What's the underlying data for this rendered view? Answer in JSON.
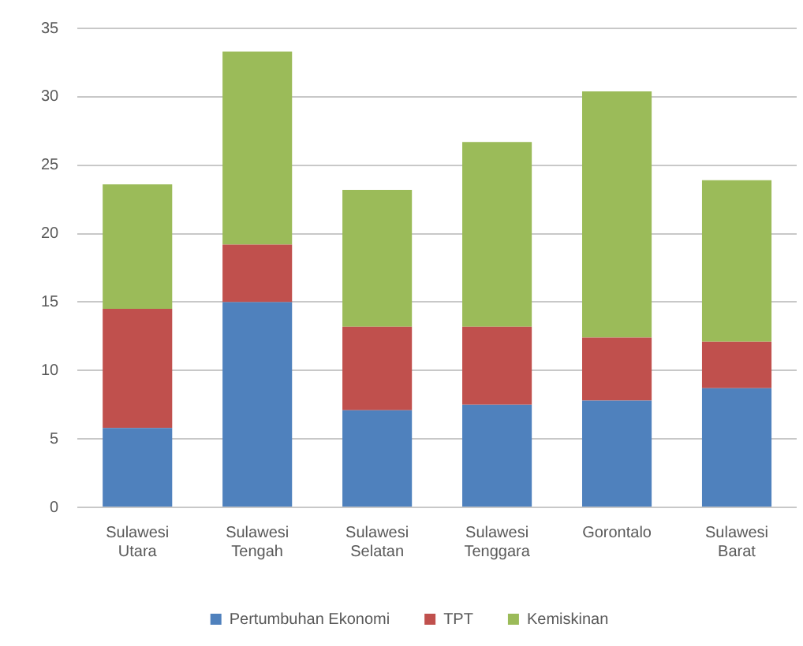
{
  "chart_data": {
    "type": "bar",
    "stacked": true,
    "categories": [
      "Sulawesi Utara",
      "Sulawesi Tengah",
      "Sulawesi Selatan",
      "Sulawesi Tenggara",
      "Gorontalo",
      "Sulawesi Barat"
    ],
    "series": [
      {
        "name": "Pertumbuhan Ekonomi",
        "color": "#4f81bd",
        "values": [
          5.8,
          15.0,
          7.1,
          7.5,
          7.8,
          8.7
        ]
      },
      {
        "name": "TPT",
        "color": "#c0504d",
        "values": [
          8.7,
          4.2,
          6.1,
          5.7,
          4.6,
          3.4
        ]
      },
      {
        "name": "Kemiskinan",
        "color": "#9bbb59",
        "values": [
          9.1,
          14.1,
          10.0,
          13.5,
          18.0,
          11.8
        ]
      }
    ],
    "ylim": [
      0,
      35
    ],
    "yticks": [
      0,
      5,
      10,
      15,
      20,
      25,
      30,
      35
    ],
    "grid": "y",
    "legend": "bottom"
  }
}
